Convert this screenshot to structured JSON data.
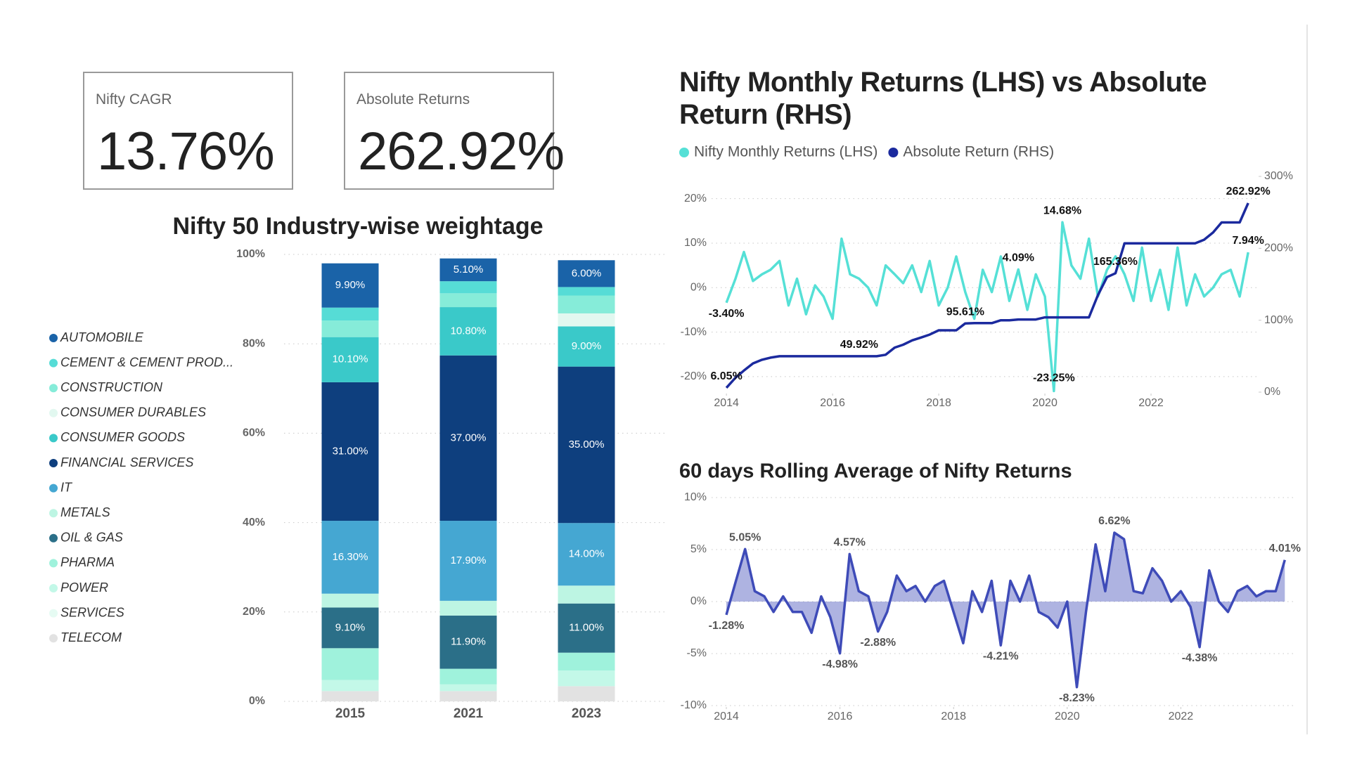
{
  "cards": [
    {
      "title": "Nifty CAGR",
      "value": "13.76%"
    },
    {
      "title": "Absolute Returns",
      "value": "262.92%"
    }
  ],
  "chart_data": [
    {
      "type": "bar",
      "stacked": true,
      "title": "Nifty 50 Industry-wise weightage",
      "categories": [
        "2015",
        "2021",
        "2023"
      ],
      "series": [
        {
          "name": "AUTOMOBILE",
          "color": "#1a63a8",
          "values": [
            9.9,
            5.1,
            6.0
          ],
          "value_labels": [
            "9.90%",
            "5.10%",
            "6.00%"
          ]
        },
        {
          "name": "CEMENT & CEMENT PROD...",
          "color": "#56dcd6",
          "values": [
            2.9,
            2.7,
            1.9
          ],
          "value_labels": [
            null,
            null,
            null
          ]
        },
        {
          "name": "CONSTRUCTION",
          "color": "#86ecd9",
          "values": [
            3.7,
            3.1,
            4
          ],
          "value_labels": [
            null,
            null,
            null
          ]
        },
        {
          "name": "CONSUMER DURABLES",
          "color": "#e2f8f0",
          "values": [
            0,
            0,
            2.9
          ],
          "value_labels": [
            null,
            null,
            null
          ]
        },
        {
          "name": "CONSUMER GOODS",
          "color": "#3ac9c9",
          "values": [
            10.1,
            10.8,
            9.0
          ],
          "value_labels": [
            "10.10%",
            "10.80%",
            "9.00%"
          ]
        },
        {
          "name": "FINANCIAL SERVICES",
          "color": "#0e3f7e",
          "values": [
            31,
            37,
            35
          ],
          "value_labels": [
            "31.00%",
            "37.00%",
            "35.00%"
          ]
        },
        {
          "name": "IT",
          "color": "#45a7d2",
          "values": [
            16.3,
            17.9,
            14
          ],
          "value_labels": [
            "16.30%",
            "17.90%",
            "14.00%"
          ]
        },
        {
          "name": "METALS",
          "color": "#bdf5e3",
          "values": [
            3.1,
            3.3,
            4
          ],
          "value_labels": [
            null,
            null,
            null
          ]
        },
        {
          "name": "OIL & GAS",
          "color": "#2b6f88",
          "values": [
            9.1,
            11.9,
            11
          ],
          "value_labels": [
            "9.10%",
            "11.90%",
            "11.00%"
          ]
        },
        {
          "name": "PHARMA",
          "color": "#9ff2dc",
          "values": [
            7.1,
            3.5,
            4
          ],
          "value_labels": [
            null,
            null,
            null
          ]
        },
        {
          "name": "POWER",
          "color": "#c3f8e8",
          "values": [
            2.5,
            1.5,
            3.5
          ],
          "value_labels": [
            null,
            null,
            null
          ]
        },
        {
          "name": "SERVICES",
          "color": "#e6fbf3",
          "values": [
            0,
            0,
            0
          ],
          "value_labels": [
            null,
            null,
            null
          ]
        },
        {
          "name": "TELECOM",
          "color": "#e2e2e2",
          "values": [
            2.3,
            2.3,
            3.4
          ],
          "value_labels": [
            null,
            null,
            null
          ]
        }
      ],
      "ylim": [
        0,
        100
      ],
      "yticks": [
        {
          "value": 0,
          "label": "0%"
        },
        {
          "value": 20,
          "label": "20%"
        },
        {
          "value": 40,
          "label": "40%"
        },
        {
          "value": 60,
          "label": "60%"
        },
        {
          "value": 80,
          "label": "80%"
        },
        {
          "value": 100,
          "label": "100%"
        }
      ],
      "grid": true,
      "legend": "left"
    },
    {
      "type": "line",
      "title": "Nifty Monthly Returns (LHS) vs Absolute Return (RHS)",
      "x": [
        2014,
        2014.17,
        2014.33,
        2014.5,
        2014.67,
        2014.83,
        2015,
        2015.17,
        2015.33,
        2015.5,
        2015.67,
        2015.83,
        2016,
        2016.17,
        2016.33,
        2016.5,
        2016.67,
        2016.83,
        2017,
        2017.17,
        2017.33,
        2017.5,
        2017.67,
        2017.83,
        2018,
        2018.17,
        2018.33,
        2018.5,
        2018.67,
        2018.83,
        2019,
        2019.17,
        2019.33,
        2019.5,
        2019.67,
        2019.83,
        2020,
        2020.17,
        2020.33,
        2020.5,
        2020.67,
        2020.83,
        2021,
        2021.17,
        2021.33,
        2021.5,
        2021.67,
        2021.83,
        2022,
        2022.17,
        2022.33,
        2022.5,
        2022.67,
        2022.83,
        2023,
        2023.17,
        2023.33,
        2023.5,
        2023.67,
        2023.83
      ],
      "series": [
        {
          "name": "Nifty Monthly Returns (LHS)",
          "color": "#55e0d6",
          "values": [
            -3.4,
            2,
            8,
            1.5,
            3,
            4,
            6,
            -4,
            2,
            -6,
            0.5,
            -2,
            -7,
            11,
            3,
            2,
            0,
            -4,
            5,
            3,
            1,
            5,
            -1,
            6,
            -4,
            0,
            7,
            -1,
            -7,
            4,
            -1,
            7,
            -3,
            4.09,
            -5,
            3,
            -2,
            -23.25,
            14.68,
            5,
            2,
            11,
            -2,
            4,
            7,
            3,
            -3,
            9,
            -3,
            4,
            -5,
            9,
            -4,
            3,
            -2,
            0,
            3,
            4,
            -2,
            7.94
          ],
          "value_labels": [
            "-3.40%",
            null,
            null,
            null,
            null,
            null,
            null,
            null,
            null,
            null,
            null,
            null,
            null,
            null,
            null,
            null,
            null,
            null,
            null,
            null,
            null,
            null,
            null,
            null,
            null,
            null,
            null,
            null,
            null,
            null,
            null,
            null,
            null,
            "4.09%",
            null,
            null,
            null,
            "-23.25%",
            "14.68%",
            null,
            null,
            null,
            null,
            null,
            null,
            null,
            null,
            null,
            null,
            null,
            null,
            null,
            null,
            null,
            null,
            null,
            null,
            null,
            null,
            "7.94%"
          ]
        },
        {
          "name": "Absolute Return (RHS)",
          "color": "#1b2a9e",
          "axis": "y2",
          "values": [
            6.05,
            20,
            30,
            40,
            45,
            48,
            49.92,
            49.92,
            49.92,
            49.92,
            49.92,
            49.92,
            49.92,
            49.92,
            49.92,
            49.92,
            49.92,
            49.92,
            52,
            62,
            66,
            72,
            76,
            80,
            86,
            86,
            86,
            95.61,
            96,
            96,
            96,
            100,
            100,
            101,
            101,
            101,
            104,
            104,
            104,
            104,
            104,
            104,
            135,
            160,
            165.36,
            207,
            207,
            207,
            207,
            207,
            207,
            207,
            207,
            207,
            212,
            222,
            236,
            236,
            236,
            262.92
          ],
          "value_labels": [
            "6.05%",
            null,
            null,
            null,
            null,
            null,
            null,
            null,
            null,
            null,
            null,
            null,
            null,
            null,
            null,
            "49.92%",
            null,
            null,
            null,
            null,
            null,
            null,
            null,
            null,
            null,
            null,
            null,
            "95.61%",
            null,
            null,
            null,
            null,
            null,
            null,
            null,
            null,
            null,
            null,
            null,
            null,
            null,
            null,
            null,
            null,
            "165.36%",
            null,
            null,
            null,
            null,
            null,
            null,
            null,
            null,
            null,
            null,
            null,
            null,
            null,
            null,
            "262.92%"
          ]
        }
      ],
      "xlim": [
        2013.72,
        2024
      ],
      "xticks": [
        2014,
        2016,
        2018,
        2020,
        2022
      ],
      "ylim": [
        -23.5,
        25
      ],
      "yticks": [
        {
          "value": -20,
          "label": "-20%"
        },
        {
          "value": -10,
          "label": "-10%"
        },
        {
          "value": 0,
          "label": "0%"
        },
        {
          "value": 10,
          "label": "10%"
        },
        {
          "value": 20,
          "label": "20%"
        }
      ],
      "y2lim": [
        0,
        300
      ],
      "y2ticks": [
        {
          "value": 0,
          "label": "0%"
        },
        {
          "value": 100,
          "label": "100%"
        },
        {
          "value": 200,
          "label": "200%"
        },
        {
          "value": 300,
          "label": "300%"
        }
      ],
      "grid": true,
      "legend": "top-left"
    },
    {
      "type": "area",
      "title": "60 days Rolling Average of Nifty Returns",
      "x": [
        2014,
        2014.17,
        2014.33,
        2014.5,
        2014.67,
        2014.83,
        2015,
        2015.17,
        2015.33,
        2015.5,
        2015.67,
        2015.83,
        2016,
        2016.17,
        2016.33,
        2016.5,
        2016.67,
        2016.83,
        2017,
        2017.17,
        2017.33,
        2017.5,
        2017.67,
        2017.83,
        2018,
        2018.17,
        2018.33,
        2018.5,
        2018.67,
        2018.83,
        2019,
        2019.17,
        2019.33,
        2019.5,
        2019.67,
        2019.83,
        2020,
        2020.17,
        2020.33,
        2020.5,
        2020.67,
        2020.83,
        2021,
        2021.17,
        2021.33,
        2021.5,
        2021.67,
        2021.83,
        2022,
        2022.17,
        2022.33,
        2022.5,
        2022.67,
        2022.83,
        2023,
        2023.17,
        2023.33,
        2023.5,
        2023.67,
        2023.83
      ],
      "series": [
        {
          "color": "#3e4bb8",
          "values": [
            -1.28,
            2,
            5.05,
            1,
            0.5,
            -1,
            0.5,
            -1,
            -1,
            -3,
            0.5,
            -1.5,
            -4.98,
            4.57,
            1,
            0.5,
            -2.88,
            -1,
            2.5,
            1,
            1.5,
            0,
            1.5,
            2,
            -1,
            -4,
            1,
            -1,
            2,
            -4.21,
            2,
            0,
            2.5,
            -1,
            -1.5,
            -2.5,
            0,
            -8.23,
            -1,
            5.5,
            1,
            6.62,
            6,
            1,
            0.8,
            3.2,
            2,
            0,
            1,
            -0.5,
            -4.38,
            3,
            0,
            -1,
            1,
            1.5,
            0.5,
            1,
            1,
            4.01
          ],
          "value_labels": [
            "-1.28%",
            null,
            "5.05%",
            null,
            null,
            null,
            null,
            null,
            null,
            null,
            null,
            null,
            "-4.98%",
            "4.57%",
            null,
            null,
            "-2.88%",
            null,
            null,
            null,
            null,
            null,
            null,
            null,
            null,
            null,
            null,
            null,
            null,
            "-4.21%",
            null,
            null,
            null,
            null,
            null,
            null,
            null,
            "-8.23%",
            null,
            null,
            null,
            "6.62%",
            null,
            null,
            null,
            null,
            null,
            null,
            null,
            null,
            "-4.38%",
            null,
            null,
            null,
            null,
            null,
            null,
            null,
            null,
            "4.01%"
          ]
        }
      ],
      "xlim": [
        2013.74,
        2024
      ],
      "xticks": [
        2014,
        2016,
        2018,
        2020,
        2022
      ],
      "ylim": [
        -10,
        10
      ],
      "yticks": [
        {
          "value": -10,
          "label": "-10%"
        },
        {
          "value": -5,
          "label": "-5%"
        },
        {
          "value": 0,
          "label": "0%"
        },
        {
          "value": 5,
          "label": "5%"
        },
        {
          "value": 10,
          "label": "10%"
        }
      ],
      "grid": true
    }
  ]
}
